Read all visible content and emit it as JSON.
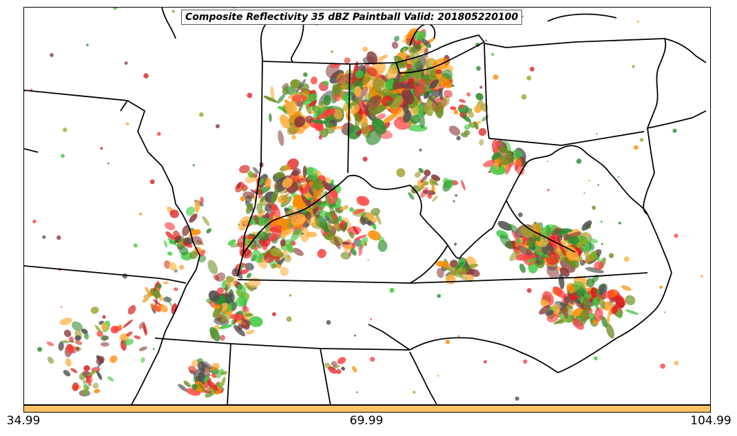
{
  "title": "Composite Reflectivity 35 dBZ Paintball Valid: 201805220100",
  "colorbar": {
    "color": "#ffc266",
    "tick_labels": [
      "34.99",
      "69.99",
      "104.99"
    ]
  },
  "paintball_colors": [
    "#ff4040",
    "#ff8c00",
    "#3cc83c",
    "#8b3a3a",
    "#a0a030",
    "#505050",
    "#ffb040",
    "#2e8b2e",
    "#dd2020",
    "#6b8e23"
  ],
  "map": {
    "projection": "regional Lambert",
    "region": "Ohio Valley / Mid-Atlantic, USA",
    "layers": [
      "state-boundaries",
      "coastlines",
      "great-lakes",
      "reflectivity-paintballs"
    ]
  }
}
